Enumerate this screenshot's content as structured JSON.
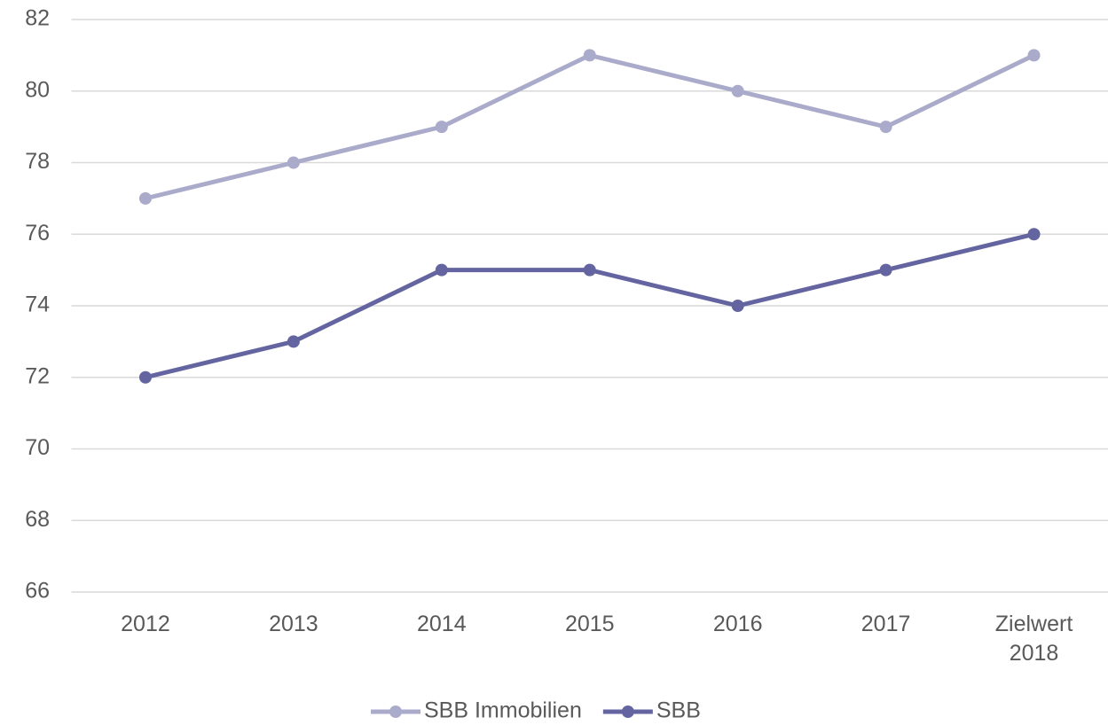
{
  "chart_data": {
    "type": "line",
    "categories": [
      "2012",
      "2013",
      "2014",
      "2015",
      "2016",
      "2017",
      "Zielwert 2018"
    ],
    "series": [
      {
        "name": "SBB Immobilien",
        "color": "#aaaacb",
        "values": [
          77,
          78,
          79,
          81,
          80,
          79,
          81
        ]
      },
      {
        "name": "SBB",
        "color": "#6465a0",
        "values": [
          72,
          73,
          75,
          75,
          74,
          75,
          76
        ]
      }
    ],
    "ylim": [
      66,
      82
    ],
    "yticks": [
      66,
      68,
      70,
      72,
      74,
      76,
      78,
      80,
      82
    ],
    "grid": true,
    "legend": "bottom"
  }
}
